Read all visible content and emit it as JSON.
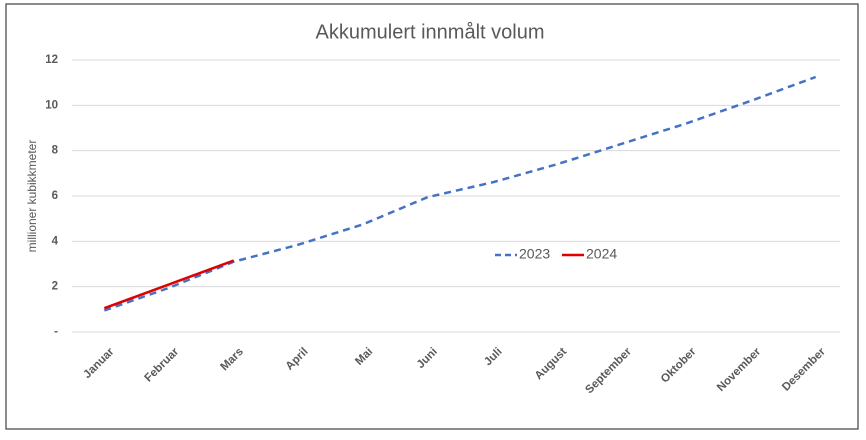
{
  "chart_data": {
    "type": "line",
    "title": "Akkumulert innmålt volum",
    "y_label": "millioner kubikkmeter",
    "categories": [
      "Januar",
      "Februar",
      "Mars",
      "April",
      "Mai",
      "Juni",
      "Juli",
      "August",
      "September",
      "Oktober",
      "November",
      "Desember"
    ],
    "series": [
      {
        "name": "2023",
        "color": "#4472c4",
        "dashed": true,
        "values": [
          0.95,
          1.95,
          3.1,
          3.85,
          4.75,
          5.95,
          6.6,
          7.4,
          8.3,
          9.2,
          10.2,
          11.25
        ]
      },
      {
        "name": "2024",
        "color": "#e00000",
        "dashed": false,
        "values": [
          1.05,
          2.1,
          3.15,
          null,
          null,
          null,
          null,
          null,
          null,
          null,
          null,
          null
        ]
      }
    ],
    "ylim": [
      0,
      12
    ],
    "yticks": [
      {
        "value": 0,
        "label": "-"
      },
      2,
      4,
      6,
      8,
      10,
      12
    ],
    "grid": true,
    "legend": "center"
  }
}
